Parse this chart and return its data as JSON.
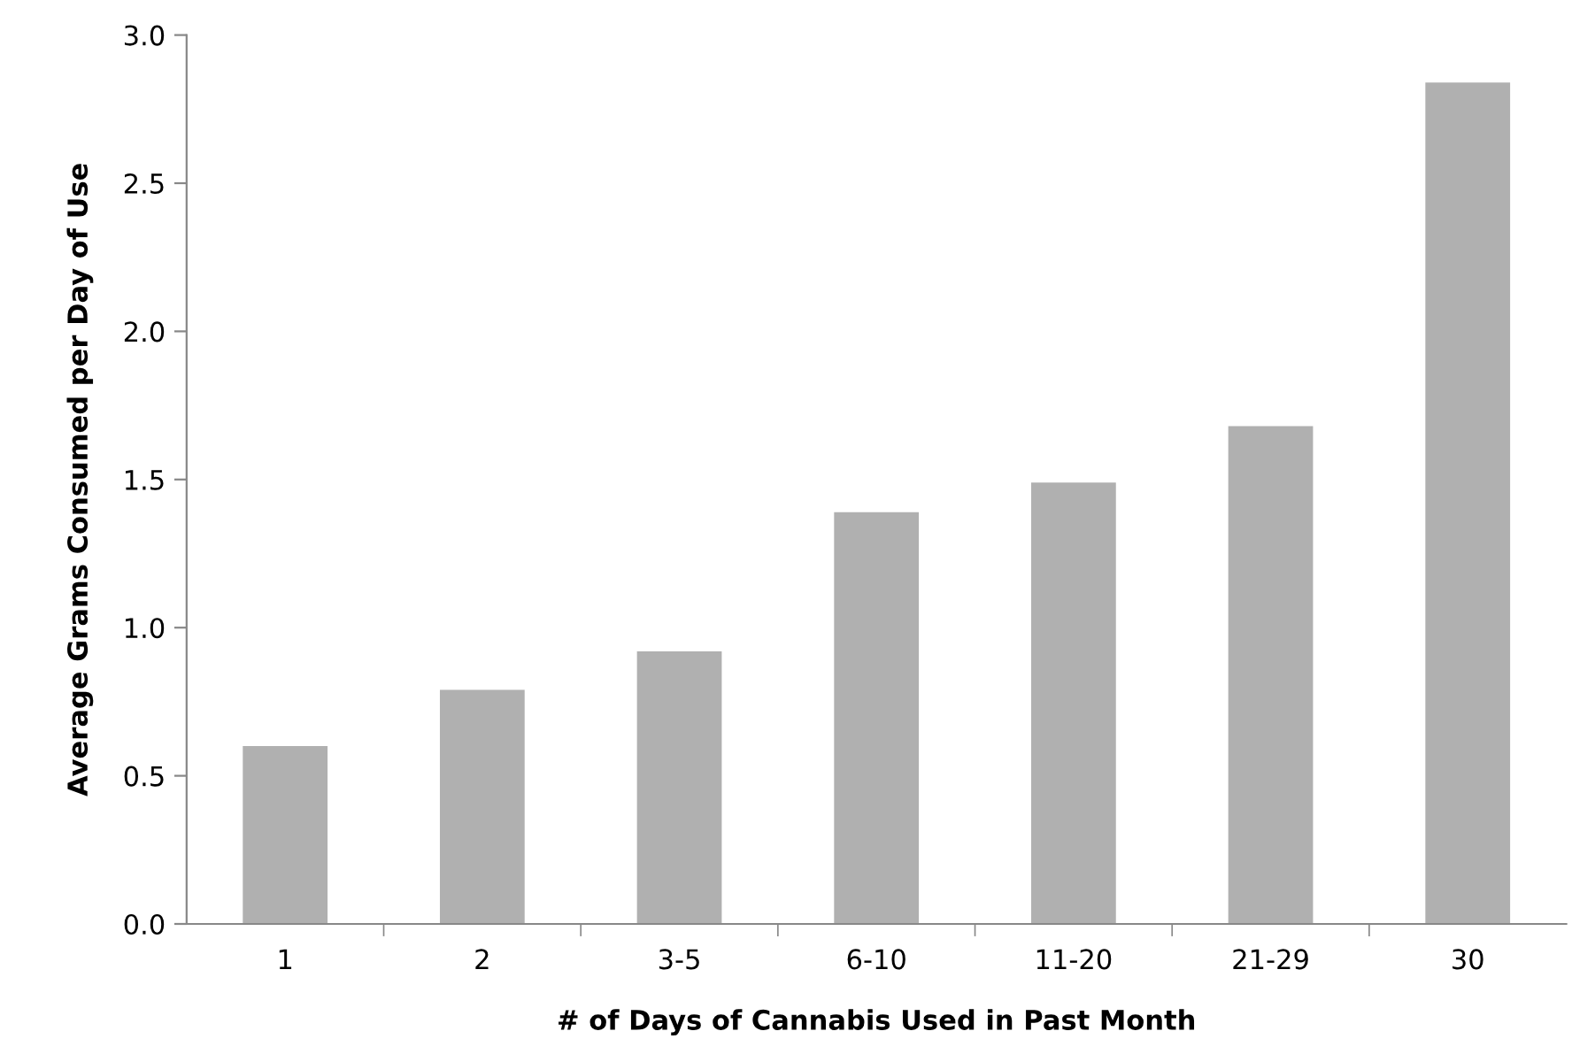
{
  "chart_data": {
    "type": "bar",
    "xlabel": "# of Days of Cannabis Used in Past Month",
    "ylabel": "Average Grams Consumed per Day of Use",
    "categories": [
      "1",
      "2",
      "3-5",
      "6-10",
      "11-20",
      "21-29",
      "30"
    ],
    "values": [
      0.6,
      0.79,
      0.92,
      1.39,
      1.49,
      1.68,
      2.84
    ],
    "color": "#b0b0b0",
    "ylim": [
      0,
      3.0
    ],
    "yticks": [
      {
        "value": 0,
        "label": "0.0"
      },
      {
        "value": 0.5,
        "label": "0.5"
      },
      {
        "value": 1.0,
        "label": "1.0"
      },
      {
        "value": 1.5,
        "label": "1.5"
      },
      {
        "value": 2.0,
        "label": "2.0"
      },
      {
        "value": 2.5,
        "label": "2.5"
      },
      {
        "value": 3.0,
        "label": "3.0"
      }
    ],
    "grid": false
  }
}
